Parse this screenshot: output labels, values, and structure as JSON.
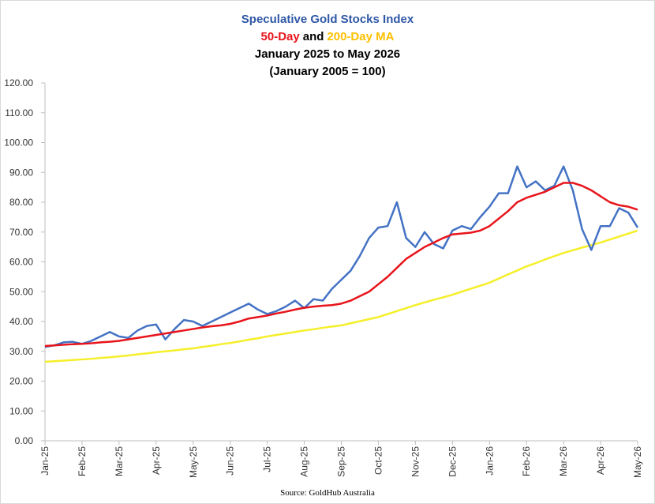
{
  "chart_data": {
    "type": "line",
    "title": "Speculative Gold Stocks Index",
    "title_color": "#2f58a6",
    "subtitle_parts": [
      {
        "text": "50-Day",
        "color": "#e8141b"
      },
      {
        "text": "and",
        "color": "#000000"
      },
      {
        "text": "200-Day MA",
        "color": "#ffc000"
      }
    ],
    "subtitle2": "January 2025 to May 2026",
    "subtitle3": "(January 2005 = 100)",
    "source": "Source: GoldHub Australia",
    "categories": [
      "Jan-25",
      null,
      null,
      null,
      "Feb-25",
      null,
      null,
      null,
      "Mar-25",
      null,
      null,
      null,
      "Apr-25",
      null,
      null,
      null,
      "May-25",
      null,
      null,
      null,
      "Jun-25",
      null,
      null,
      null,
      "Jul-25",
      null,
      null,
      null,
      "Aug-25",
      null,
      null,
      null,
      "Sep-25",
      null,
      null,
      null,
      "Oct-25",
      null,
      null,
      null,
      "Nov-25",
      null,
      null,
      null,
      "Dec-25",
      null,
      null,
      null,
      "Jan-26",
      null,
      null,
      null,
      "Feb-26",
      null,
      null,
      null,
      "Mar-26",
      null,
      null,
      null,
      "Apr-26",
      null,
      null,
      null,
      "May-26"
    ],
    "series": [
      {
        "color": "#4472c4",
        "values": [
          31.5,
          32,
          33,
          33.2,
          32.5,
          33.5,
          35,
          36.5,
          35,
          34.5,
          37,
          38.5,
          39,
          34,
          37.5,
          40.5,
          40,
          38.5,
          40,
          41.5,
          43,
          44.5,
          46,
          44,
          42.5,
          43.5,
          45,
          47,
          44.5,
          47.5,
          47,
          51,
          54,
          57,
          62,
          68,
          71.5,
          72,
          80,
          68,
          65,
          70,
          66,
          64.5,
          70.5,
          72,
          71,
          75,
          78.5,
          83,
          83,
          92,
          85,
          87,
          84,
          85.5,
          92,
          84,
          71,
          64,
          72,
          72,
          78,
          76.5,
          71.5
        ]
      },
      {
        "color": "#e8141b",
        "values": [
          31.8,
          32,
          32.2,
          32.4,
          32.5,
          32.7,
          33,
          33.2,
          33.5,
          34,
          34.5,
          35,
          35.5,
          36,
          36.5,
          37,
          37.5,
          38,
          38.4,
          38.7,
          39.2,
          40,
          41,
          41.5,
          42,
          42.7,
          43.3,
          44,
          44.6,
          45,
          45.3,
          45.5,
          46,
          47,
          48.5,
          50,
          52.5,
          55,
          58,
          61,
          63,
          65,
          66.5,
          68,
          69.2,
          69.5,
          69.8,
          70.5,
          72,
          74.5,
          77,
          80,
          81.5,
          82.5,
          83.5,
          85,
          86.5,
          86.5,
          85.5,
          84,
          82,
          80,
          79,
          78.5,
          77.5
        ]
      },
      {
        "color": "#f5ef2a",
        "values": [
          26.5,
          26.7,
          26.9,
          27.1,
          27.3,
          27.5,
          27.8,
          28,
          28.3,
          28.6,
          29,
          29.3,
          29.7,
          30,
          30.3,
          30.7,
          31,
          31.5,
          31.9,
          32.4,
          32.8,
          33.3,
          33.9,
          34.4,
          35,
          35.5,
          36,
          36.5,
          37,
          37.4,
          37.9,
          38.3,
          38.7,
          39.4,
          40.1,
          40.8,
          41.5,
          42.5,
          43.5,
          44.5,
          45.5,
          46.4,
          47.3,
          48.1,
          49,
          50,
          51,
          52,
          53,
          54.4,
          55.8,
          57.1,
          58.5,
          59.6,
          60.8,
          61.9,
          63,
          63.9,
          64.8,
          65.6,
          66.5,
          67.5,
          68.5,
          69.5,
          70.5
        ]
      }
    ],
    "ylim": [
      0,
      120
    ],
    "yticks": [
      {
        "value": 0,
        "label": "0.00"
      },
      {
        "value": 10,
        "label": "10.00"
      },
      {
        "value": 20,
        "label": "20.00"
      },
      {
        "value": 30,
        "label": "30.00"
      },
      {
        "value": 40,
        "label": "40.00"
      },
      {
        "value": 50,
        "label": "50.00"
      },
      {
        "value": 60,
        "label": "60.00"
      },
      {
        "value": 70,
        "label": "70.00"
      },
      {
        "value": 80,
        "label": "80.00"
      },
      {
        "value": 90,
        "label": "90.00"
      },
      {
        "value": 100,
        "label": "100.00"
      },
      {
        "value": 110,
        "label": "110.00"
      },
      {
        "value": 120,
        "label": "120.00"
      }
    ],
    "grid": false
  }
}
